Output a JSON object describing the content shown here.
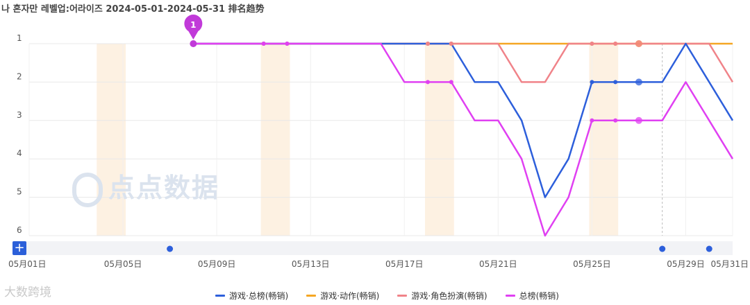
{
  "title": "나 혼자만 레벨업:어라이즈 2024-05-01-2024-05-31 排名趋势",
  "watermark": "点点数据",
  "brand": "大数跨境",
  "add_button_label": "+",
  "marker_label": "1",
  "colors": {
    "series1": "#2d5fdb",
    "series2": "#f5a623",
    "series3": "#f08389",
    "series4": "#e040f2",
    "highlight_band": "#fdf1e2",
    "grid": "#e8e8e8",
    "marker": "#c13ad9",
    "timeline_dot": "#2d5fdb"
  },
  "chart_data": {
    "type": "line",
    "title": "나 혼자만 레벨업:어라이즈 2024-05-01-2024-05-31 排名趋势",
    "x_labels": [
      "05月01日",
      "05月05日",
      "05月09日",
      "05月13日",
      "05月17日",
      "05月21日",
      "05月25日",
      "05月29日",
      "05月31日"
    ],
    "x_label_days": [
      1,
      5,
      9,
      13,
      17,
      21,
      25,
      29,
      31
    ],
    "y_ticks": [
      1,
      2,
      3,
      4,
      5,
      6
    ],
    "ylim": [
      1,
      6
    ],
    "y_inverted": true,
    "highlight_weekends": [
      [
        4,
        5
      ],
      [
        11,
        12
      ],
      [
        18,
        19
      ],
      [
        25,
        26
      ]
    ],
    "marker_day": 8,
    "timeline_dot_days": [
      7,
      28,
      30
    ],
    "series": [
      {
        "name": "游戏·总榜(畅销)",
        "color": "#2d5fdb",
        "days": [
          8,
          9,
          10,
          11,
          12,
          13,
          14,
          15,
          16,
          17,
          18,
          19,
          20,
          21,
          22,
          23,
          24,
          25,
          26,
          27,
          28,
          29,
          30,
          31
        ],
        "values": [
          1,
          1,
          1,
          1,
          1,
          1,
          1,
          1,
          1,
          1,
          1,
          1,
          2,
          2,
          3,
          5,
          4,
          2,
          2,
          2,
          2,
          1,
          2,
          3
        ]
      },
      {
        "name": "游戏·动作(畅销)",
        "color": "#f5a623",
        "days": [
          8,
          9,
          10,
          11,
          12,
          13,
          14,
          15,
          16,
          17,
          18,
          19,
          20,
          21,
          22,
          23,
          24,
          25,
          26,
          27,
          28,
          29,
          30,
          31
        ],
        "values": [
          1,
          1,
          1,
          1,
          1,
          1,
          1,
          1,
          1,
          1,
          1,
          1,
          1,
          1,
          1,
          1,
          1,
          1,
          1,
          1,
          1,
          1,
          1,
          1
        ]
      },
      {
        "name": "游戏·角色扮演(畅销)",
        "color": "#f08389",
        "days": [
          8,
          9,
          10,
          11,
          12,
          13,
          14,
          15,
          16,
          17,
          18,
          19,
          20,
          21,
          22,
          23,
          24,
          25,
          26,
          27,
          28,
          29,
          30,
          31
        ],
        "values": [
          1,
          1,
          1,
          1,
          1,
          1,
          1,
          1,
          1,
          1,
          1,
          1,
          1,
          1,
          2,
          2,
          1,
          1,
          1,
          1,
          1,
          1,
          1,
          2
        ]
      },
      {
        "name": "总榜(畅销)",
        "color": "#e040f2",
        "days": [
          8,
          9,
          10,
          11,
          12,
          13,
          14,
          15,
          16,
          17,
          18,
          19,
          20,
          21,
          22,
          23,
          24,
          25,
          26,
          27,
          28,
          29,
          30,
          31
        ],
        "values": [
          1,
          1,
          1,
          1,
          1,
          1,
          1,
          1,
          1,
          2,
          2,
          2,
          3,
          3,
          4,
          6,
          5,
          3,
          3,
          3,
          3,
          2,
          3,
          4
        ]
      }
    ]
  }
}
